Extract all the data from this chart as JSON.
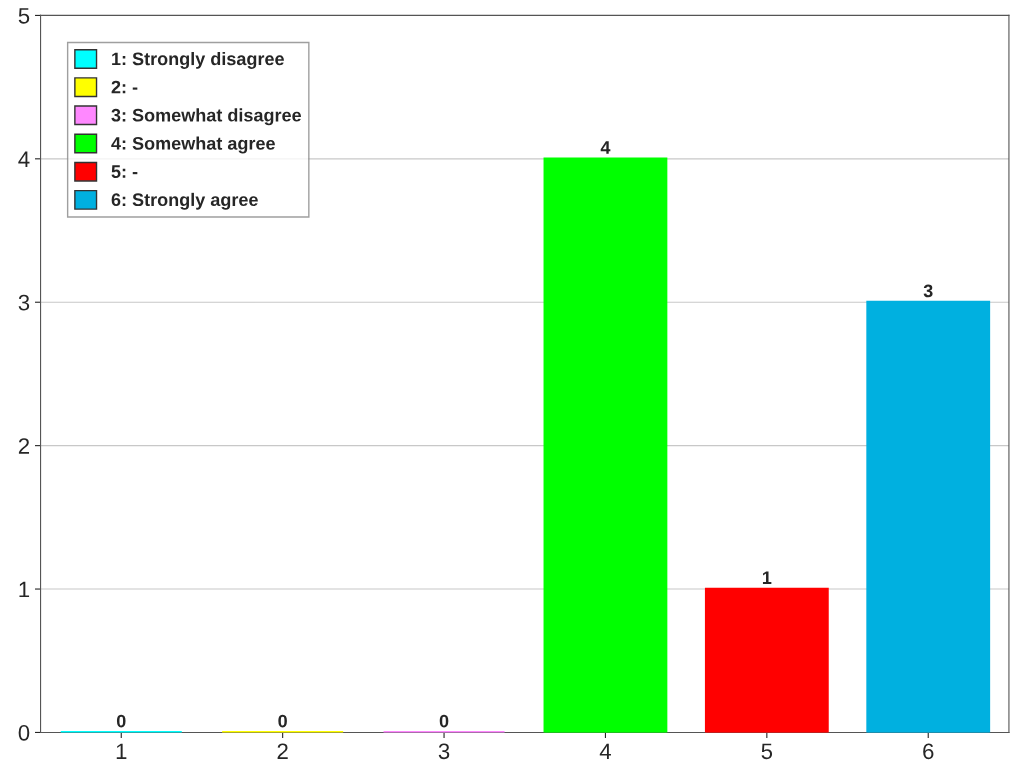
{
  "chart_data": {
    "type": "bar",
    "categories": [
      "1",
      "2",
      "3",
      "4",
      "5",
      "6"
    ],
    "series": [
      {
        "name": "1: Strongly disagree",
        "color": "#00ffff",
        "values": [
          0,
          null,
          null,
          null,
          null,
          null
        ]
      },
      {
        "name": "2: -",
        "color": "#ffff00",
        "values": [
          null,
          0,
          null,
          null,
          null,
          null
        ]
      },
      {
        "name": "3: Somewhat disagree",
        "color": "#ff88ff",
        "values": [
          null,
          null,
          0,
          null,
          null,
          null
        ]
      },
      {
        "name": "4: Somewhat agree",
        "color": "#00ff00",
        "values": [
          null,
          null,
          null,
          4,
          null,
          null
        ]
      },
      {
        "name": "5: -",
        "color": "#ff0000",
        "values": [
          null,
          null,
          null,
          null,
          1,
          null
        ]
      },
      {
        "name": "6: Strongly agree",
        "color": "#00b0e0",
        "values": [
          null,
          null,
          null,
          null,
          null,
          3
        ]
      }
    ],
    "ylim": [
      0,
      5
    ],
    "yticks": [
      0,
      1,
      2,
      3,
      4,
      5
    ],
    "grid": "y",
    "legend": "top left",
    "data_labels": true
  }
}
